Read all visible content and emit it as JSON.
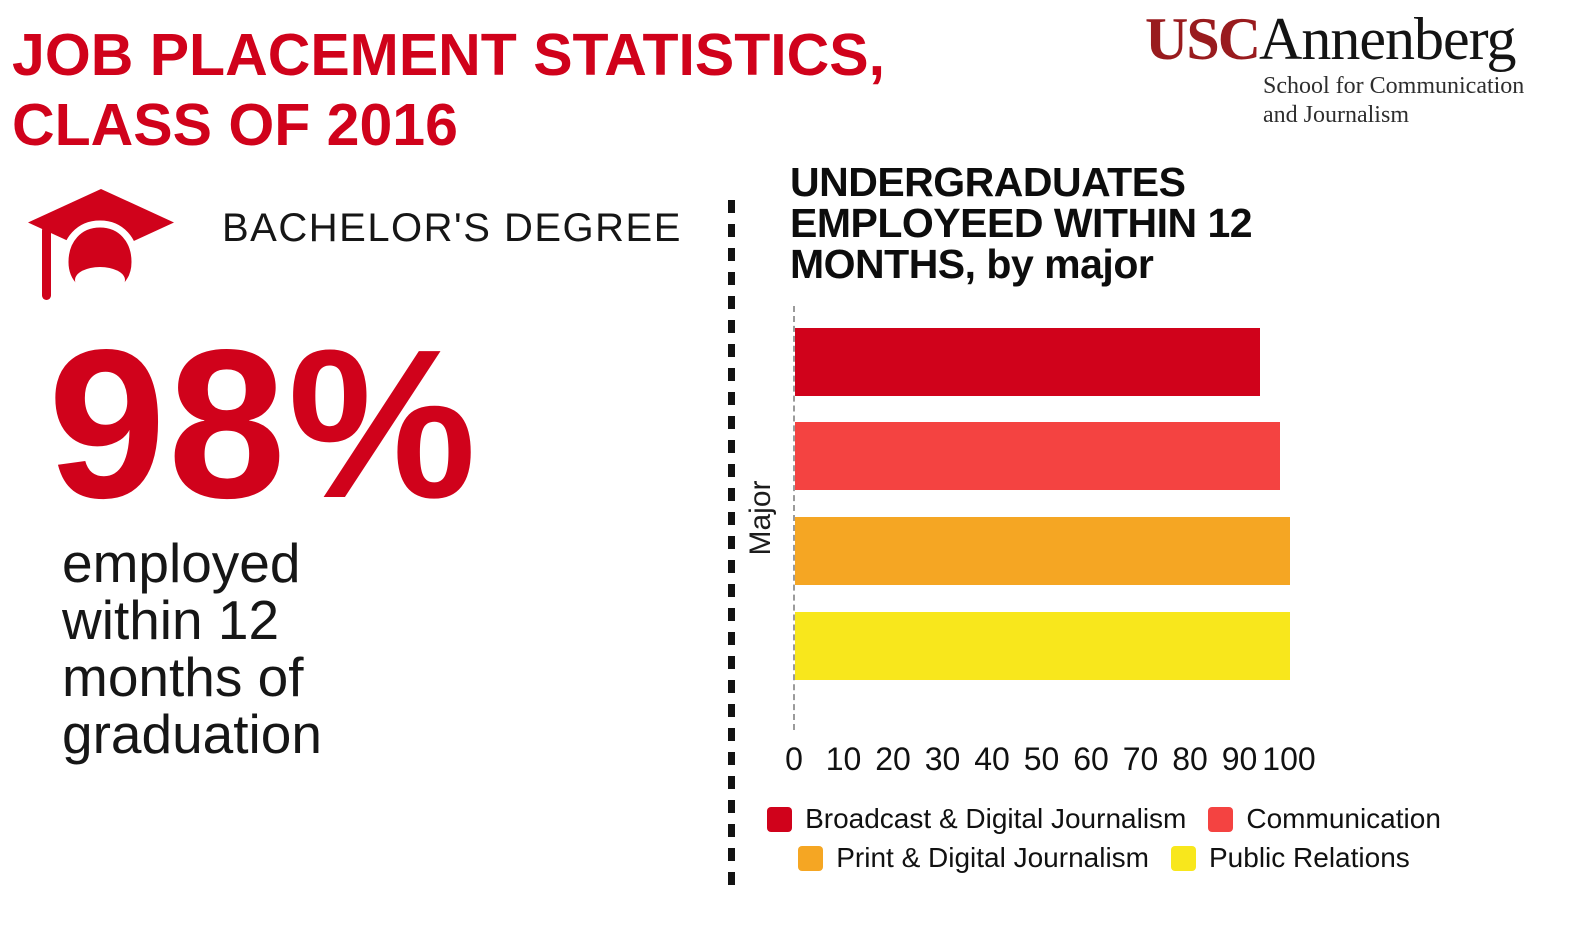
{
  "header": {
    "title_line1": "JOB PLACEMENT STATISTICS,",
    "title_line2": "CLASS OF 2016",
    "logo": {
      "usc": "USC",
      "annenberg": "Annenberg",
      "subtitle_line1": "School for Communication",
      "subtitle_line2": "and Journalism"
    }
  },
  "left_panel": {
    "degree_label": "BACHELOR'S DEGREE",
    "stat_value": "98%",
    "stat_description_lines": [
      "employed",
      "within 12",
      "months of",
      "graduation"
    ],
    "icon": "graduation-cap-icon"
  },
  "chart": {
    "title_lines": [
      "UNDERGRADUATES",
      "EMPLOYEED WITHIN 12",
      "MONTHS, by major"
    ],
    "y_axis_label": "Major",
    "legend": [
      {
        "label": "Broadcast & Digital Journalism",
        "color": "#D0021B"
      },
      {
        "label": "Communication",
        "color": "#F44341"
      },
      {
        "label": "Print & Digital Journalism",
        "color": "#F5A623"
      },
      {
        "label": "Public Relations",
        "color": "#F8E71C"
      }
    ]
  },
  "chart_data": {
    "type": "bar",
    "orientation": "horizontal",
    "title": "UNDERGRADUATES EMPLOYEED WITHIN 12 MONTHS, by major",
    "categories": [
      "Broadcast & Digital Journalism",
      "Communication",
      "Print & Digital Journalism",
      "Public Relations"
    ],
    "values": [
      94,
      98,
      100,
      100
    ],
    "colors": [
      "#D0021B",
      "#F44341",
      "#F5A623",
      "#F8E71C"
    ],
    "xlabel": "",
    "ylabel": "Major",
    "xlim": [
      0,
      100
    ],
    "x_ticks": [
      0,
      10,
      20,
      30,
      40,
      50,
      60,
      70,
      80,
      90,
      100
    ],
    "grid": false,
    "legend_position": "bottom"
  },
  "colors": {
    "accent_red": "#D0021B",
    "salmon": "#F44341",
    "orange": "#F5A623",
    "yellow": "#F8E71C",
    "usc_cardinal": "#991B1E",
    "text_dark": "#111111"
  }
}
